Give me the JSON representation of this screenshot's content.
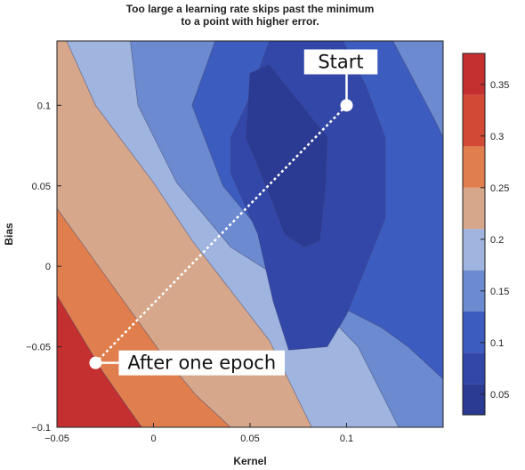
{
  "chart_data": {
    "type": "contour",
    "title_lines": [
      "Too large a learning rate skips past the minimum",
      "to a point with higher error."
    ],
    "xlabel": "Kernel",
    "ylabel": "Bias",
    "xlim": [
      -0.05,
      0.15
    ],
    "ylim": [
      -0.1,
      0.14
    ],
    "x_ticks": [
      {
        "value": -0.05,
        "label": "−0.05"
      },
      {
        "value": 0,
        "label": "0"
      },
      {
        "value": 0.05,
        "label": "0.05"
      },
      {
        "value": 0.1,
        "label": "0.1"
      }
    ],
    "y_ticks": [
      {
        "value": 0.1,
        "label": "0.1"
      },
      {
        "value": 0.05,
        "label": "0.05"
      },
      {
        "value": 0,
        "label": "0"
      },
      {
        "value": -0.05,
        "label": "−0.05"
      },
      {
        "value": -0.1,
        "label": "−0.1"
      }
    ],
    "colorbar": {
      "range": [
        0.03,
        0.38
      ],
      "levels": [
        0.03,
        0.06,
        0.09,
        0.13,
        0.17,
        0.21,
        0.25,
        0.29,
        0.34,
        0.38
      ],
      "colors": [
        "#2b3a93",
        "#3347a8",
        "#3d5cc0",
        "#6b8ad0",
        "#9fb4df",
        "#d6a78a",
        "#e07e4e",
        "#d24a35",
        "#c42f2f"
      ],
      "ticks": [
        {
          "value": 0.05,
          "label": "0.05"
        },
        {
          "value": 0.1,
          "label": "0.1"
        },
        {
          "value": 0.15,
          "label": "0.15"
        },
        {
          "value": 0.2,
          "label": "0.2"
        },
        {
          "value": 0.25,
          "label": "0.25"
        },
        {
          "value": 0.3,
          "label": "0.3"
        },
        {
          "value": 0.35,
          "label": "0.35"
        }
      ]
    },
    "contour_regions": [
      {
        "color": "#c42f2f",
        "points": [
          [
            -0.05,
            -0.1
          ],
          [
            -0.05,
            -0.018
          ],
          [
            -0.026,
            -0.066
          ],
          [
            -0.012,
            -0.09
          ],
          [
            -0.006,
            -0.1
          ]
        ]
      },
      {
        "color": "#e07e4e",
        "points": [
          [
            -0.05,
            -0.018
          ],
          [
            -0.05,
            0.036
          ],
          [
            0.004,
            -0.054
          ],
          [
            0.022,
            -0.08
          ],
          [
            0.04,
            -0.1
          ],
          [
            -0.006,
            -0.1
          ],
          [
            -0.012,
            -0.09
          ],
          [
            -0.026,
            -0.066
          ]
        ]
      },
      {
        "color": "#d6a78a",
        "points": [
          [
            -0.05,
            0.036
          ],
          [
            -0.05,
            0.14
          ],
          [
            -0.045,
            0.14
          ],
          [
            -0.03,
            0.1
          ],
          [
            0,
            0.052
          ],
          [
            0.02,
            0.016
          ],
          [
            0.06,
            -0.046
          ],
          [
            0.082,
            -0.1
          ],
          [
            0.04,
            -0.1
          ],
          [
            0.022,
            -0.08
          ],
          [
            0.004,
            -0.054
          ]
        ]
      },
      {
        "color": "#9fb4df",
        "points": [
          [
            -0.045,
            0.14
          ],
          [
            -0.012,
            0.14
          ],
          [
            -0.008,
            0.1
          ],
          [
            0.012,
            0.052
          ],
          [
            0.04,
            0.012
          ],
          [
            0.082,
            -0.02
          ],
          [
            0.106,
            -0.05
          ],
          [
            0.127,
            -0.1
          ],
          [
            0.082,
            -0.1
          ],
          [
            0.06,
            -0.046
          ],
          [
            0.02,
            0.016
          ],
          [
            0,
            0.052
          ],
          [
            -0.03,
            0.1
          ]
        ]
      },
      {
        "color": "#6b8ad0",
        "points": [
          [
            -0.012,
            0.14
          ],
          [
            0.032,
            0.14
          ],
          [
            0.02,
            0.1
          ],
          [
            0.036,
            0.05
          ],
          [
            0.068,
            0.004
          ],
          [
            0.092,
            -0.022
          ],
          [
            0.118,
            -0.038
          ],
          [
            0.132,
            -0.05
          ],
          [
            0.15,
            -0.07
          ],
          [
            0.15,
            -0.1
          ],
          [
            0.127,
            -0.1
          ],
          [
            0.106,
            -0.05
          ],
          [
            0.082,
            -0.02
          ],
          [
            0.04,
            0.012
          ],
          [
            0.012,
            0.052
          ],
          [
            -0.008,
            0.1
          ]
        ]
      },
      {
        "color": "#6b8ad0",
        "points": [
          [
            0.124,
            0.14
          ],
          [
            0.15,
            0.14
          ],
          [
            0.15,
            0.08
          ],
          [
            0.146,
            0.09
          ]
        ]
      },
      {
        "color": "#3d5cc0",
        "points": [
          [
            0.032,
            0.14
          ],
          [
            0.124,
            0.14
          ],
          [
            0.146,
            0.09
          ],
          [
            0.15,
            0.08
          ],
          [
            0.15,
            -0.07
          ],
          [
            0.132,
            -0.05
          ],
          [
            0.118,
            -0.038
          ],
          [
            0.092,
            -0.022
          ],
          [
            0.068,
            0.004
          ],
          [
            0.036,
            0.05
          ],
          [
            0.02,
            0.1
          ]
        ]
      },
      {
        "color": "#3347a8",
        "points": [
          [
            0.06,
            0.14
          ],
          [
            0.098,
            0.14
          ],
          [
            0.11,
            0.112
          ],
          [
            0.12,
            0.08
          ],
          [
            0.12,
            0.03
          ],
          [
            0.1,
            -0.03
          ],
          [
            0.09,
            -0.05
          ],
          [
            0.07,
            -0.052
          ],
          [
            0.062,
            -0.022
          ],
          [
            0.054,
            0.02
          ],
          [
            0.04,
            0.058
          ],
          [
            0.04,
            0.08
          ],
          [
            0.048,
            0.1
          ]
        ]
      },
      {
        "color": "#2b3a93",
        "points": [
          [
            0.05,
            0.12
          ],
          [
            0.06,
            0.125
          ],
          [
            0.07,
            0.11
          ],
          [
            0.09,
            0.08
          ],
          [
            0.089,
            0.05
          ],
          [
            0.086,
            0.016
          ],
          [
            0.078,
            0.012
          ],
          [
            0.068,
            0.02
          ],
          [
            0.06,
            0.045
          ],
          [
            0.048,
            0.08
          ]
        ]
      }
    ],
    "trajectory": {
      "start": {
        "x": 0.1,
        "y": 0.1
      },
      "end": {
        "x": -0.03,
        "y": -0.06
      }
    },
    "annotations": [
      {
        "text": "Start",
        "at": {
          "x": 0.1,
          "y": 0.1
        },
        "box": {
          "x": 0.078,
          "y": 0.127
        },
        "width_x": 0.038
      },
      {
        "text": "After one epoch",
        "at": {
          "x": -0.03,
          "y": -0.06
        },
        "box": {
          "x": -0.018,
          "y": -0.06
        },
        "width_x": 0.086
      }
    ]
  }
}
